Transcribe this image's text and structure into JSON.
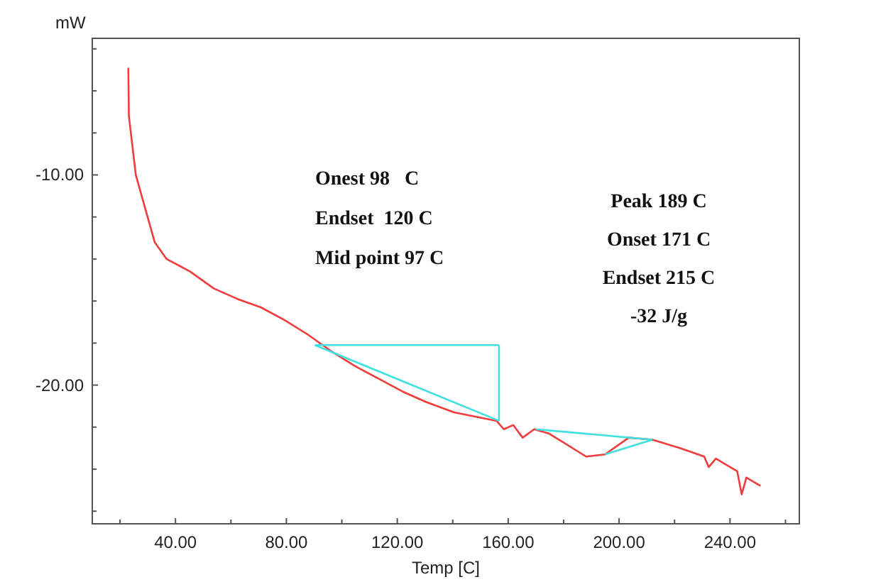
{
  "chart_data": {
    "type": "line",
    "xlabel": "Temp  [C]",
    "ylabel": "mW",
    "xlim": [
      10,
      265
    ],
    "ylim": [
      -26.6,
      -3.5
    ],
    "xticks": [
      {
        "value": 20,
        "label": null
      },
      {
        "value": 40,
        "label": "40.00"
      },
      {
        "value": 60,
        "label": null
      },
      {
        "value": 80,
        "label": "80.00"
      },
      {
        "value": 100,
        "label": null
      },
      {
        "value": 120,
        "label": "120.00"
      },
      {
        "value": 140,
        "label": null
      },
      {
        "value": 160,
        "label": "160.00"
      },
      {
        "value": 180,
        "label": null
      },
      {
        "value": 200,
        "label": "200.00"
      },
      {
        "value": 220,
        "label": null
      },
      {
        "value": 240,
        "label": "240.00"
      },
      {
        "value": 260,
        "label": null
      }
    ],
    "yticks": [
      {
        "value": -26,
        "label": null
      },
      {
        "value": -24,
        "label": null
      },
      {
        "value": -22,
        "label": null
      },
      {
        "value": -20,
        "label": "-20.00"
      },
      {
        "value": -18,
        "label": null
      },
      {
        "value": -16,
        "label": null
      },
      {
        "value": -14,
        "label": null
      },
      {
        "value": -12,
        "label": null
      },
      {
        "value": -10,
        "label": "-10.00"
      },
      {
        "value": -8,
        "label": null
      },
      {
        "value": -6,
        "label": null
      },
      {
        "value": -4,
        "label": null
      }
    ],
    "grid": false,
    "marker": "none",
    "line_style": "solid",
    "series": [
      {
        "color": "#f03c3c",
        "x": [
          23,
          23.2,
          25.7,
          29.1,
          32.5,
          36.8,
          45.3,
          53.8,
          62.3,
          70.8,
          79.3,
          87.8,
          96.3,
          104.8,
          113.3,
          121.8,
          130.3,
          140.5,
          155.8,
          158.4,
          161.8,
          165.2,
          169.4,
          174.6,
          179.6,
          188.1,
          194.9,
          203.5,
          212,
          222.1,
          230.7,
          232.3,
          234.9,
          242.6,
          244.2,
          245.9,
          251
        ],
        "values": [
          -4.9,
          -7.2,
          -10,
          -11.6,
          -13.2,
          -14,
          -14.6,
          -15.4,
          -15.9,
          -16.3,
          -16.9,
          -17.6,
          -18.4,
          -19.1,
          -19.7,
          -20.3,
          -20.8,
          -21.3,
          -21.7,
          -22.1,
          -21.9,
          -22.5,
          -22.1,
          -22.3,
          -22.7,
          -23.4,
          -23.3,
          -22.5,
          -22.6,
          -23,
          -23.4,
          -23.9,
          -23.5,
          -24.1,
          -25.2,
          -24.4,
          -24.8
        ]
      },
      {
        "color": "#40e0e0",
        "x": [
          90.3,
          156.7
        ],
        "values": [
          -18.1,
          -18.1
        ]
      },
      {
        "color": "#40e0e0",
        "x": [
          156.7,
          156.7
        ],
        "values": [
          -18.1,
          -21.7
        ]
      },
      {
        "color": "#40e0e0",
        "x": [
          90.3,
          156.7
        ],
        "values": [
          -18.1,
          -21.7
        ]
      },
      {
        "color": "#40e0e0",
        "x": [
          170,
          212
        ],
        "values": [
          -22.1,
          -22.6
        ]
      },
      {
        "color": "#40e0e0",
        "x": [
          194.9,
          212
        ],
        "values": [
          -23.3,
          -22.6
        ]
      }
    ],
    "annotations": [
      "Onest 98   C",
      "Endset  120 C",
      "Mid point 97 C",
      "Peak 189 C",
      "Onset 171 C",
      "Endset 215 C",
      "-32 J/g"
    ]
  }
}
